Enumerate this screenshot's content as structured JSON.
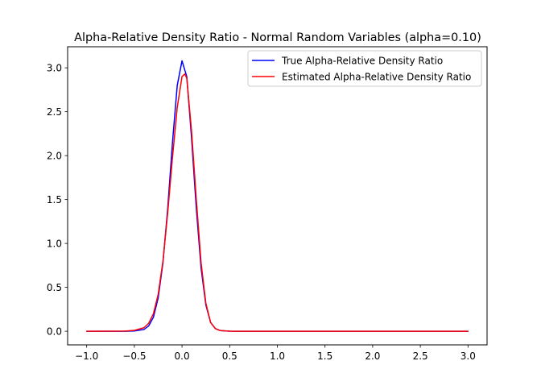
{
  "chart_data": {
    "type": "line",
    "title": "Alpha-Relative Density Ratio - Normal Random Variables (alpha=0.10)",
    "xlabel": "",
    "ylabel": "",
    "xlim": [
      -1.2,
      3.2
    ],
    "ylim": [
      -0.155,
      3.24
    ],
    "grid": false,
    "legend_position": "top-right",
    "x_ticks": [
      -1.0,
      -0.5,
      0.0,
      0.5,
      1.0,
      1.5,
      2.0,
      2.5,
      3.0
    ],
    "x_tick_labels": [
      "−1.0",
      "−0.5",
      "0.0",
      "0.5",
      "1.0",
      "1.5",
      "2.0",
      "2.5",
      "3.0"
    ],
    "y_ticks": [
      0.0,
      0.5,
      1.0,
      1.5,
      2.0,
      2.5,
      3.0
    ],
    "y_tick_labels": [
      "0.0",
      "0.5",
      "1.0",
      "1.5",
      "2.0",
      "2.5",
      "3.0"
    ],
    "series": [
      {
        "name": "True Alpha-Relative Density Ratio",
        "color": "#0000ff",
        "x": [
          -1.0,
          -0.6,
          -0.5,
          -0.4,
          -0.35,
          -0.3,
          -0.25,
          -0.2,
          -0.15,
          -0.1,
          -0.05,
          0.0,
          0.05,
          0.1,
          0.15,
          0.2,
          0.25,
          0.3,
          0.35,
          0.4,
          0.5,
          0.6,
          1.0,
          2.0,
          3.0
        ],
        "values": [
          0.0,
          0.0,
          0.003,
          0.02,
          0.06,
          0.16,
          0.38,
          0.78,
          1.4,
          2.15,
          2.8,
          3.08,
          2.9,
          2.2,
          1.4,
          0.72,
          0.3,
          0.1,
          0.03,
          0.008,
          0.001,
          0.0,
          0.0,
          0.0,
          0.0
        ]
      },
      {
        "name": "Estimated Alpha-Relative Density Ratio",
        "color": "#ff0000",
        "x": [
          -1.0,
          -0.6,
          -0.5,
          -0.4,
          -0.35,
          -0.3,
          -0.25,
          -0.2,
          -0.15,
          -0.1,
          -0.05,
          0.0,
          0.03,
          0.05,
          0.1,
          0.15,
          0.2,
          0.25,
          0.3,
          0.35,
          0.4,
          0.5,
          0.6,
          1.0,
          2.0,
          3.0
        ],
        "values": [
          0.0,
          0.002,
          0.01,
          0.04,
          0.09,
          0.2,
          0.42,
          0.8,
          1.35,
          1.98,
          2.55,
          2.9,
          2.93,
          2.88,
          2.28,
          1.5,
          0.78,
          0.32,
          0.1,
          0.03,
          0.008,
          0.001,
          0.0,
          0.0,
          0.0,
          0.0
        ]
      }
    ]
  }
}
